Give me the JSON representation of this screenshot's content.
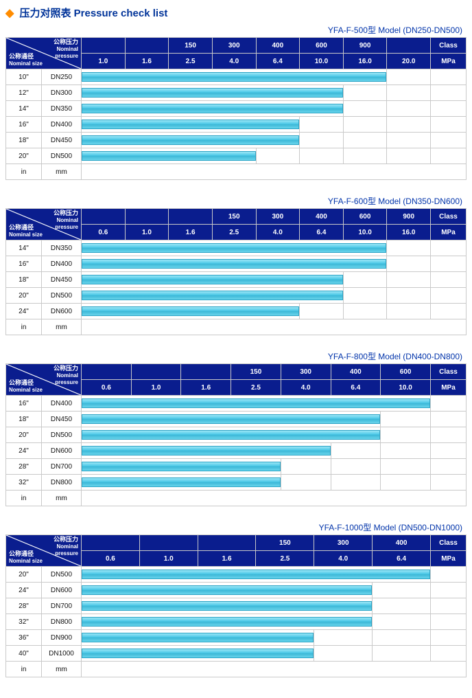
{
  "title": "压力对照表 Pressure check list",
  "diag": {
    "np_cn": "公称压力",
    "np_en": "Nominal pressure",
    "ns_cn": "公称通径",
    "ns_en": "Nominal size"
  },
  "units": {
    "in": "in",
    "mm": "mm",
    "class": "Class",
    "mpa": "MPa"
  },
  "tables": [
    {
      "model": "YFA-F-500型  Model (DN250-DN500)",
      "class_row": [
        "",
        "",
        "150",
        "300",
        "400",
        "600",
        "900",
        "",
        ""
      ],
      "mpa_row": [
        "1.0",
        "1.6",
        "2.5",
        "4.0",
        "6.4",
        "10.0",
        "16.0",
        "20.0",
        ""
      ],
      "pressure_cols": 8,
      "rows": [
        {
          "in": "10\"",
          "dn": "DN250",
          "span": 7
        },
        {
          "in": "12\"",
          "dn": "DN300",
          "span": 6
        },
        {
          "in": "14\"",
          "dn": "DN350",
          "span": 6
        },
        {
          "in": "16\"",
          "dn": "DN400",
          "span": 5
        },
        {
          "in": "18\"",
          "dn": "DN450",
          "span": 5
        },
        {
          "in": "20\"",
          "dn": "DN500",
          "span": 4
        }
      ]
    },
    {
      "model": "YFA-F-600型  Model (DN350-DN600)",
      "class_row": [
        "",
        "",
        "",
        "150",
        "300",
        "400",
        "600",
        "900",
        ""
      ],
      "mpa_row": [
        "0.6",
        "1.0",
        "1.6",
        "2.5",
        "4.0",
        "6.4",
        "10.0",
        "16.0",
        ""
      ],
      "pressure_cols": 8,
      "rows": [
        {
          "in": "14\"",
          "dn": "DN350",
          "span": 7
        },
        {
          "in": "16\"",
          "dn": "DN400",
          "span": 7
        },
        {
          "in": "18\"",
          "dn": "DN450",
          "span": 6
        },
        {
          "in": "20\"",
          "dn": "DN500",
          "span": 6
        },
        {
          "in": "24\"",
          "dn": "DN600",
          "span": 5
        }
      ]
    },
    {
      "model": "YFA-F-800型  Model (DN400-DN800)",
      "class_row": [
        "",
        "",
        "",
        "150",
        "300",
        "400",
        "600",
        ""
      ],
      "mpa_row": [
        "0.6",
        "1.0",
        "1.6",
        "2.5",
        "4.0",
        "6.4",
        "10.0",
        ""
      ],
      "pressure_cols": 7,
      "rows": [
        {
          "in": "16\"",
          "dn": "DN400",
          "span": 7
        },
        {
          "in": "18\"",
          "dn": "DN450",
          "span": 6
        },
        {
          "in": "20\"",
          "dn": "DN500",
          "span": 6
        },
        {
          "in": "24\"",
          "dn": "DN600",
          "span": 5
        },
        {
          "in": "28\"",
          "dn": "DN700",
          "span": 4
        },
        {
          "in": "32\"",
          "dn": "DN800",
          "span": 4
        }
      ]
    },
    {
      "model": "YFA-F-1000型  Model (DN500-DN1000)",
      "class_row": [
        "",
        "",
        "",
        "150",
        "300",
        "400",
        ""
      ],
      "mpa_row": [
        "0.6",
        "1.0",
        "1.6",
        "2.5",
        "4.0",
        "6.4",
        ""
      ],
      "pressure_cols": 6,
      "rows": [
        {
          "in": "20\"",
          "dn": "DN500",
          "span": 6
        },
        {
          "in": "24\"",
          "dn": "DN600",
          "span": 5
        },
        {
          "in": "28\"",
          "dn": "DN700",
          "span": 5
        },
        {
          "in": "32\"",
          "dn": "DN800",
          "span": 5
        },
        {
          "in": "36\"",
          "dn": "DN900",
          "span": 4
        },
        {
          "in": "40\"",
          "dn": "DN1000",
          "span": 4
        }
      ]
    }
  ]
}
